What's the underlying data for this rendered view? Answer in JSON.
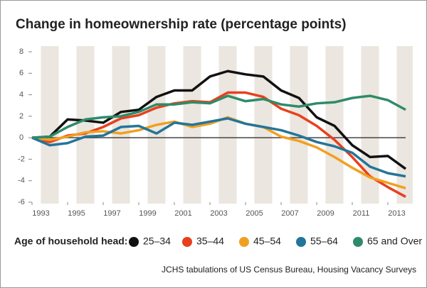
{
  "chart_data": {
    "type": "line",
    "title": "Change in homeownership rate (percentage points)",
    "x": [
      1993,
      1994,
      1995,
      1996,
      1997,
      1998,
      1999,
      2000,
      2001,
      2002,
      2003,
      2004,
      2005,
      2006,
      2007,
      2008,
      2009,
      2010,
      2011,
      2012,
      2013,
      2014
    ],
    "xlim": [
      1993,
      2014
    ],
    "xticks": [
      1993,
      1995,
      1997,
      1999,
      2001,
      2003,
      2005,
      2007,
      2009,
      2011,
      2013
    ],
    "ylim": [
      -6,
      8
    ],
    "yticks": [
      8,
      6,
      4,
      2,
      0,
      -2,
      -4,
      -6
    ],
    "legend_title": "Age of household head:",
    "source": "JCHS tabulations of US Census Bureau, Housing Vacancy Surveys",
    "series": [
      {
        "name": "25–34",
        "color": "#111111",
        "values": [
          0,
          0.1,
          1.7,
          1.6,
          1.4,
          2.4,
          2.6,
          3.8,
          4.4,
          4.4,
          5.7,
          6.2,
          5.9,
          5.7,
          4.4,
          3.7,
          1.9,
          1.1,
          -0.7,
          -1.8,
          -1.7,
          -2.9
        ]
      },
      {
        "name": "35–44",
        "color": "#e8401c",
        "values": [
          0,
          -0.4,
          0.2,
          0.4,
          1.0,
          1.8,
          2.1,
          2.8,
          3.2,
          3.4,
          3.3,
          4.2,
          4.2,
          3.8,
          2.7,
          2.1,
          1.1,
          -0.2,
          -1.8,
          -3.6,
          -4.6,
          -5.5
        ]
      },
      {
        "name": "45–54",
        "color": "#f0a020",
        "values": [
          0,
          -0.2,
          0.1,
          0.5,
          0.6,
          0.4,
          0.7,
          1.2,
          1.5,
          1.0,
          1.3,
          1.9,
          1.3,
          1.0,
          0.1,
          -0.3,
          -0.9,
          -1.8,
          -2.8,
          -3.7,
          -4.2,
          -4.7
        ]
      },
      {
        "name": "55–64",
        "color": "#24759a",
        "values": [
          0,
          -0.7,
          -0.5,
          0.1,
          0.2,
          1.0,
          1.1,
          0.4,
          1.4,
          1.2,
          1.5,
          1.8,
          1.3,
          1.0,
          0.7,
          0.2,
          -0.4,
          -0.8,
          -1.4,
          -2.7,
          -3.3,
          -3.6
        ]
      },
      {
        "name": "65 and Over",
        "color": "#2e8b6a",
        "values": [
          0,
          0.1,
          1.0,
          1.7,
          1.9,
          2.0,
          2.4,
          3.1,
          3.1,
          3.3,
          3.2,
          3.9,
          3.4,
          3.6,
          3.1,
          2.9,
          3.2,
          3.3,
          3.7,
          3.9,
          3.5,
          2.6
        ]
      }
    ]
  }
}
